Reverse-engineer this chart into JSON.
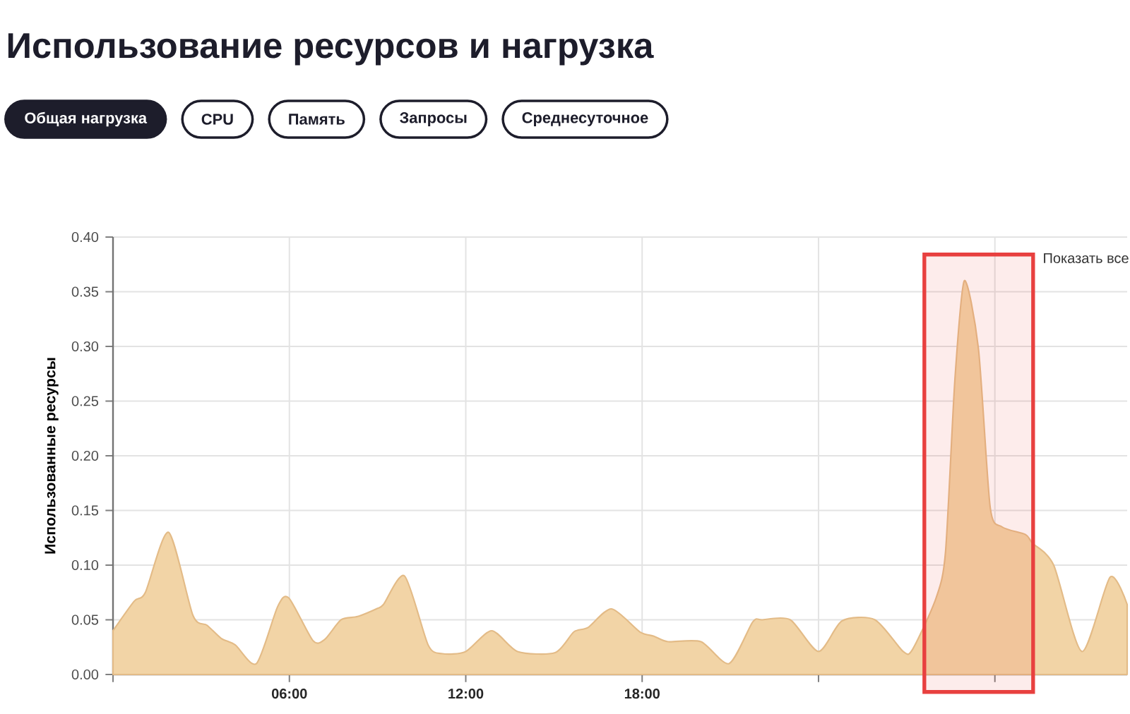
{
  "chart_data": {
    "type": "area",
    "title": "Использование ресурсов и нагрузка",
    "ylabel": "Использованные ресурсы",
    "annotations": [
      "Общая нагрузка",
      "CPU",
      "Память",
      "Запросы",
      "Среднесуточное",
      "Показать все"
    ],
    "x": [
      0,
      0.72,
      1.1,
      1.89,
      2.72,
      3.2,
      3.68,
      4.16,
      4.88,
      5.6,
      5.98,
      6.8,
      7.2,
      7.76,
      8.32,
      8.96,
      9.2,
      9.92,
      10.72,
      11.2,
      12,
      12.88,
      13.76,
      15.04,
      15.68,
      16.16,
      16.96,
      17.92,
      18.4,
      18.88,
      20,
      20.96,
      21.76,
      22.08,
      23.04,
      24,
      24.8,
      25.92,
      26.88,
      27.2,
      28,
      28.32,
      28.64,
      28.96,
      29.44,
      29.84,
      30.24,
      31.04,
      31.28,
      32,
      32.96,
      33.92,
      34.5
    ],
    "values": [
      0.04,
      0.067,
      0.075,
      0.13,
      0.054,
      0.045,
      0.033,
      0.027,
      0.01,
      0.062,
      0.07,
      0.031,
      0.032,
      0.05,
      0.053,
      0.06,
      0.064,
      0.09,
      0.027,
      0.019,
      0.021,
      0.04,
      0.021,
      0.02,
      0.039,
      0.043,
      0.06,
      0.039,
      0.035,
      0.03,
      0.03,
      0.01,
      0.048,
      0.05,
      0.05,
      0.021,
      0.049,
      0.05,
      0.021,
      0.023,
      0.07,
      0.112,
      0.27,
      0.36,
      0.298,
      0.153,
      0.135,
      0.128,
      0.12,
      0.1,
      0.021,
      0.089,
      0.064
    ],
    "color": "#f2d4a6",
    "xlim": [
      0,
      34.5
    ],
    "ylim": [
      0,
      0.4
    ],
    "xticks": [
      {
        "value": 0,
        "label": null
      },
      {
        "value": 6,
        "label": "06:00"
      },
      {
        "value": 12,
        "label": "12:00"
      },
      {
        "value": 18,
        "label": "18:00"
      },
      {
        "value": 24,
        "label": null
      },
      {
        "value": 30,
        "label": null
      }
    ],
    "yticks": [
      {
        "value": 0,
        "label": "0.00"
      },
      {
        "value": 0.05,
        "label": "0.05"
      },
      {
        "value": 0.1,
        "label": "0.10"
      },
      {
        "value": 0.15,
        "label": "0.15"
      },
      {
        "value": 0.2,
        "label": "0.20"
      },
      {
        "value": 0.25,
        "label": "0.25"
      },
      {
        "value": 0.3,
        "label": "0.30"
      },
      {
        "value": 0.35,
        "label": "0.35"
      },
      {
        "value": 0.4,
        "label": "0.40"
      }
    ],
    "grid": true,
    "bands": [
      {
        "axis": "x",
        "from": 27.6,
        "to": 31.3,
        "color": "#e8403f"
      }
    ]
  }
}
